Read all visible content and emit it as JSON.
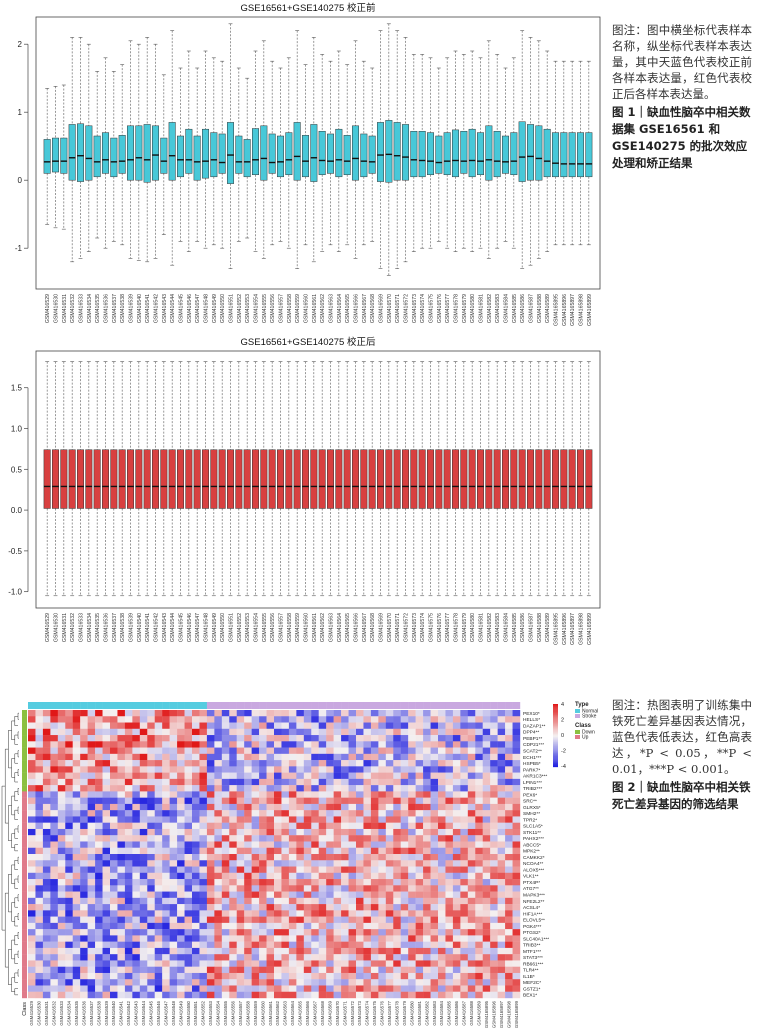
{
  "samples": [
    "GSM416529",
    "GSM416530",
    "GSM416531",
    "GSM416532",
    "GSM416533",
    "GSM416534",
    "GSM416535",
    "GSM416536",
    "GSM416537",
    "GSM416538",
    "GSM416539",
    "GSM416540",
    "GSM416541",
    "GSM416542",
    "GSM416543",
    "GSM416544",
    "GSM416545",
    "GSM416546",
    "GSM416547",
    "GSM416548",
    "GSM416549",
    "GSM416550",
    "GSM416551",
    "GSM416552",
    "GSM416553",
    "GSM416554",
    "GSM416555",
    "GSM416556",
    "GSM416557",
    "GSM416558",
    "GSM416559",
    "GSM416560",
    "GSM416561",
    "GSM416562",
    "GSM416563",
    "GSM416564",
    "GSM416565",
    "GSM416566",
    "GSM416567",
    "GSM416568",
    "GSM416569",
    "GSM416570",
    "GSM416571",
    "GSM416572",
    "GSM416573",
    "GSM416574",
    "GSM416575",
    "GSM416576",
    "GSM416577",
    "GSM416578",
    "GSM416579",
    "GSM416580",
    "GSM416581",
    "GSM416582",
    "GSM416583",
    "GSM416584",
    "GSM416585",
    "GSM416586",
    "GSM416587",
    "GSM416588",
    "GSM416589",
    "GSM4165895",
    "GSM4165896",
    "GSM4165897",
    "GSM4165898",
    "GSM4165899"
  ],
  "figure1": {
    "caption_note": "图注：图中横坐标代表样本名称，纵坐标代表样本表达量，其中天蓝色代表校正前各样本表达量，红色代表校正后各样本表达量。",
    "caption_label": "图 1",
    "caption_title": "｜缺血性脑卒中相关数据集 GSE16561 和 GSE140275 的批次效应处理和矫正结果"
  },
  "chart_data": [
    {
      "type": "box",
      "title": "GSE16561+GSE140275  校正前",
      "ylim": [
        -1.6,
        2.4
      ],
      "yticks": [
        "-1",
        "0",
        "1",
        "2"
      ],
      "ytick_values": [
        -1,
        0,
        1,
        2
      ],
      "color": "#48c8d8",
      "q1": [
        0.1,
        0.12,
        0.1,
        0.0,
        -0.02,
        0.0,
        0.05,
        0.1,
        0.05,
        0.1,
        0.0,
        0.0,
        -0.03,
        0.0,
        0.1,
        0.0,
        0.05,
        0.1,
        0.0,
        0.03,
        0.05,
        0.1,
        -0.05,
        0.1,
        0.05,
        0.08,
        0.0,
        0.1,
        0.05,
        0.08,
        0.0,
        0.05,
        -0.02,
        0.08,
        0.1,
        0.05,
        0.08,
        0.0,
        0.05,
        0.1,
        -0.02,
        -0.03,
        0.0,
        0.0,
        0.05,
        0.05,
        0.08,
        0.1,
        0.08,
        0.05,
        0.1,
        0.05,
        0.08,
        0.0,
        0.05,
        0.1,
        0.08,
        -0.02,
        0.0,
        0.0,
        0.05,
        0.05,
        0.05,
        0.05,
        0.05,
        0.05
      ],
      "median": [
        0.27,
        0.28,
        0.28,
        0.33,
        0.36,
        0.32,
        0.27,
        0.3,
        0.27,
        0.28,
        0.3,
        0.33,
        0.3,
        0.37,
        0.28,
        0.36,
        0.3,
        0.3,
        0.27,
        0.28,
        0.3,
        0.26,
        0.37,
        0.27,
        0.27,
        0.3,
        0.32,
        0.26,
        0.27,
        0.3,
        0.35,
        0.28,
        0.33,
        0.29,
        0.28,
        0.3,
        0.28,
        0.32,
        0.28,
        0.27,
        0.37,
        0.38,
        0.36,
        0.34,
        0.3,
        0.29,
        0.28,
        0.26,
        0.28,
        0.29,
        0.28,
        0.29,
        0.28,
        0.3,
        0.28,
        0.27,
        0.28,
        0.34,
        0.35,
        0.32,
        0.28,
        0.25,
        0.24,
        0.24,
        0.24,
        0.24
      ],
      "q3": [
        0.6,
        0.62,
        0.62,
        0.82,
        0.83,
        0.8,
        0.65,
        0.7,
        0.62,
        0.66,
        0.8,
        0.8,
        0.82,
        0.8,
        0.62,
        0.85,
        0.65,
        0.75,
        0.65,
        0.75,
        0.7,
        0.68,
        0.85,
        0.65,
        0.6,
        0.76,
        0.8,
        0.68,
        0.65,
        0.7,
        0.85,
        0.66,
        0.82,
        0.72,
        0.68,
        0.75,
        0.66,
        0.8,
        0.68,
        0.65,
        0.85,
        0.88,
        0.85,
        0.82,
        0.72,
        0.72,
        0.7,
        0.65,
        0.7,
        0.74,
        0.72,
        0.75,
        0.7,
        0.8,
        0.72,
        0.65,
        0.7,
        0.86,
        0.82,
        0.8,
        0.75,
        0.7,
        0.7,
        0.7,
        0.7,
        0.7
      ],
      "whisker_low": [
        -0.65,
        -0.7,
        -0.72,
        -1.2,
        -1.15,
        -1.05,
        -0.85,
        -1.0,
        -0.9,
        -0.95,
        -1.15,
        -1.18,
        -1.2,
        -1.15,
        -0.8,
        -1.25,
        -0.9,
        -1.05,
        -0.9,
        -1.0,
        -0.95,
        -1.0,
        -1.3,
        -0.9,
        -0.85,
        -1.05,
        -1.15,
        -0.95,
        -0.9,
        -1.0,
        -1.3,
        -0.95,
        -1.2,
        -1.05,
        -0.95,
        -1.05,
        -0.95,
        -1.15,
        -0.95,
        -0.9,
        -1.3,
        -1.4,
        -1.3,
        -1.2,
        -1.05,
        -1.0,
        -1.0,
        -0.9,
        -1.0,
        -1.05,
        -1.0,
        -1.05,
        -1.0,
        -1.15,
        -1.0,
        -0.9,
        -1.0,
        -1.3,
        -1.25,
        -1.15,
        -1.05,
        -0.95,
        -0.95,
        -0.95,
        -0.95,
        -0.95
      ],
      "whisker_high": [
        1.35,
        1.38,
        1.4,
        2.1,
        2.1,
        2.0,
        1.6,
        1.8,
        1.6,
        1.7,
        2.05,
        2.0,
        2.1,
        2.0,
        1.55,
        2.2,
        1.65,
        1.9,
        1.65,
        1.9,
        1.8,
        1.75,
        2.3,
        1.65,
        1.5,
        1.9,
        2.05,
        1.75,
        1.65,
        1.8,
        2.2,
        1.7,
        2.1,
        1.85,
        1.75,
        1.9,
        1.7,
        2.05,
        1.75,
        1.65,
        2.2,
        2.3,
        2.2,
        2.1,
        1.85,
        1.85,
        1.8,
        1.65,
        1.8,
        1.9,
        1.85,
        1.9,
        1.8,
        2.05,
        1.85,
        1.65,
        1.8,
        2.2,
        2.1,
        2.05,
        1.9,
        1.75,
        1.75,
        1.75,
        1.75,
        1.75
      ]
    },
    {
      "type": "box",
      "title": "GSE16561+GSE140275  校正后",
      "ylim": [
        -1.2,
        1.95
      ],
      "yticks": [
        "-1.0",
        "-0.5",
        "0.0",
        "0.5",
        "1.0",
        "1.5"
      ],
      "ytick_values": [
        -1.0,
        -0.5,
        0.0,
        0.5,
        1.0,
        1.5
      ],
      "color": "#d84040",
      "q1": 0.02,
      "median": 0.29,
      "q3": 0.74,
      "whisker_low": -1.05,
      "whisker_high": 1.82
    },
    {
      "type": "heatmap",
      "genes": [
        "PEX10*",
        "HELLS*",
        "DAZAP1**",
        "DPP4**",
        "PEBP1**",
        "CDP21***",
        "SCAT2**",
        "ECH1***",
        "HSPB5*",
        "PARK7*",
        "AKR1C3***",
        "LPIN1***",
        "TRIB2***",
        "PEX6*",
        "SRC**",
        "GLRX5*",
        "SMH2**",
        "TPR2*",
        "SLC1A5*",
        "STK11**",
        "PAHX2***",
        "ABCC5*",
        "MPK2**",
        "CAMKK2*",
        "NCOA4**",
        "ALOX5***",
        "VLK1**",
        "PTX4P*",
        "ATG7**",
        "MAPK3***",
        "NFE2L2**",
        "ACSL4*",
        "HIF1A***",
        "ELOVL5**",
        "PGK4***",
        "PTGS2*",
        "SLC40A1***",
        "TRIB3**",
        "MTF1***",
        "STAT3***",
        "RB661***",
        "TLR4**",
        "IL1B*",
        "MEF2C*",
        "GSTZ1*",
        "BEX1*"
      ],
      "n_normal": 24,
      "n_stroke": 42,
      "scale": [
        -4,
        4
      ],
      "scale_ticks": [
        "4",
        "2",
        "0",
        "-2",
        "-4"
      ],
      "colors": {
        "low": "#1a1adf",
        "mid": "#f4f0f0",
        "high": "#e01818",
        "normal": "#55cce0",
        "stroke": "#c9a8e0",
        "down": "#8cc040",
        "up": "#e07a8a"
      }
    }
  ],
  "legend": {
    "type_title": "Type",
    "type_items": [
      "Normal",
      "Stroke"
    ],
    "class_title": "Class",
    "class_items": [
      "Down",
      "Up"
    ],
    "class_axis_label": "Class"
  },
  "figure2": {
    "caption_note_a": "图注：热图表明了训练集中铁死亡差异基因表达情况，蓝色代表低表达，红色高表达，",
    "caption_note_b": "*P < 0.05，**P < 0.01，***P < 0.001。",
    "caption_label": "图 2",
    "caption_title": "｜缺血性脑卒中相关铁死亡差异基因的筛选结果"
  }
}
